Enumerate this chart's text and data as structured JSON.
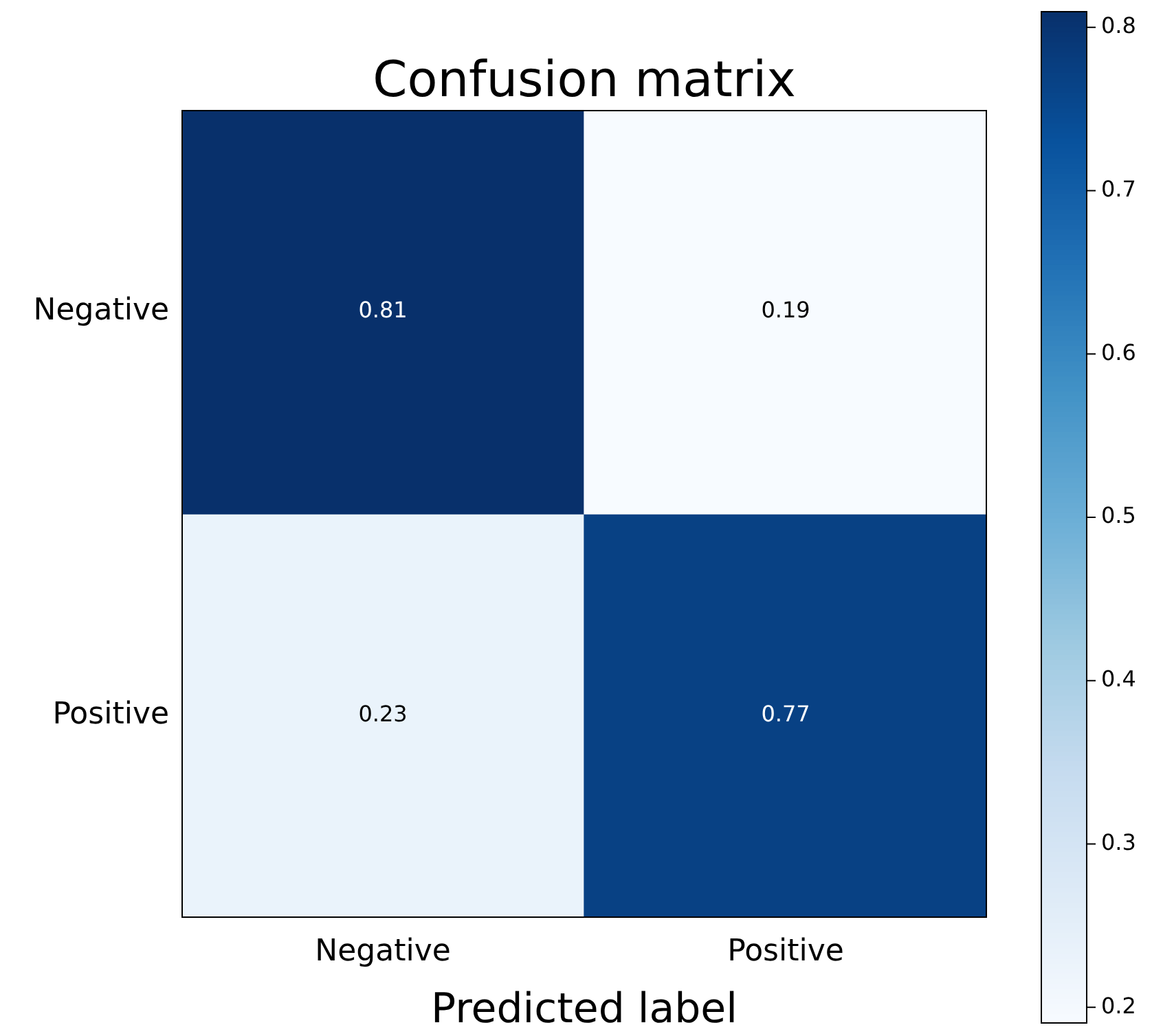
{
  "chart_data": {
    "type": "heatmap",
    "title": "Confusion matrix",
    "xlabel": "Predicted label",
    "categories": [
      "Negative",
      "Positive"
    ],
    "y_categories": [
      "Negative",
      "Positive"
    ],
    "cells": [
      [
        0.81,
        0.19
      ],
      [
        0.23,
        0.77
      ]
    ],
    "clim": [
      0.19,
      0.81
    ],
    "cticks": [
      0.2,
      0.3,
      0.4,
      0.5,
      0.6,
      0.7,
      0.8
    ],
    "data_labels": true
  }
}
